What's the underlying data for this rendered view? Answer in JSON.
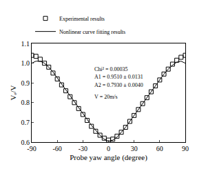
{
  "chart_data": {
    "type": "scatter",
    "x_label": "Probe yaw angle (degree)",
    "y_label": "Vₑ/V",
    "xlim": [
      -90,
      90
    ],
    "xticks": [
      -90,
      -60,
      -30,
      0,
      30,
      60,
      90
    ],
    "ylim": [
      0.6,
      1.1
    ],
    "yticks": [
      0.6,
      0.7,
      0.8,
      0.9,
      {
        "value": 1.0,
        "label": "1.0"
      },
      1.1
    ],
    "grid": false,
    "legend": "top-left",
    "annotations": [
      "Chi² = 0.00035",
      "A1 = 0.9510 ± 0.0131",
      "A2 = 0.7930 ± 0.0040",
      "V = 20m/s"
    ],
    "series": [
      {
        "name": "Experimental results",
        "type": "scatter",
        "marker": "square-open",
        "color": "#000000",
        "x": [
          -90,
          -85,
          -80,
          -75,
          -70,
          -65,
          -60,
          -55,
          -50,
          -45,
          -40,
          -35,
          -30,
          -25,
          -20,
          -15,
          -10,
          -5,
          0,
          5,
          10,
          15,
          20,
          25,
          30,
          35,
          40,
          45,
          50,
          55,
          60,
          65,
          70,
          75,
          80,
          85,
          90
        ],
        "values": [
          1.04,
          1.035,
          1.02,
          1.0,
          0.98,
          0.95,
          0.92,
          0.89,
          0.86,
          0.83,
          0.8,
          0.77,
          0.74,
          0.71,
          0.68,
          0.655,
          0.635,
          0.62,
          0.61,
          0.615,
          0.63,
          0.65,
          0.675,
          0.705,
          0.735,
          0.765,
          0.795,
          0.825,
          0.855,
          0.885,
          0.915,
          0.945,
          0.97,
          0.995,
          1.015,
          1.03,
          1.04
        ]
      },
      {
        "name": "Nonlinear curve fitting results",
        "type": "line",
        "line_style": "solid",
        "color": "#000000",
        "x": [
          -90,
          -85,
          -80,
          -75,
          -70,
          -65,
          -60,
          -55,
          -50,
          -45,
          -40,
          -35,
          -30,
          -25,
          -20,
          -15,
          -10,
          -5,
          0,
          5,
          10,
          15,
          20,
          25,
          30,
          35,
          40,
          45,
          50,
          55,
          60,
          65,
          70,
          75,
          80,
          85,
          90
        ],
        "values": [
          1.0,
          1.01,
          1.01,
          1.0,
          0.98,
          0.955,
          0.925,
          0.895,
          0.865,
          0.835,
          0.805,
          0.775,
          0.745,
          0.715,
          0.685,
          0.66,
          0.635,
          0.615,
          0.605,
          0.61,
          0.625,
          0.65,
          0.675,
          0.705,
          0.735,
          0.765,
          0.795,
          0.825,
          0.855,
          0.885,
          0.915,
          0.945,
          0.97,
          0.99,
          1.005,
          1.01,
          1.0
        ]
      }
    ]
  }
}
